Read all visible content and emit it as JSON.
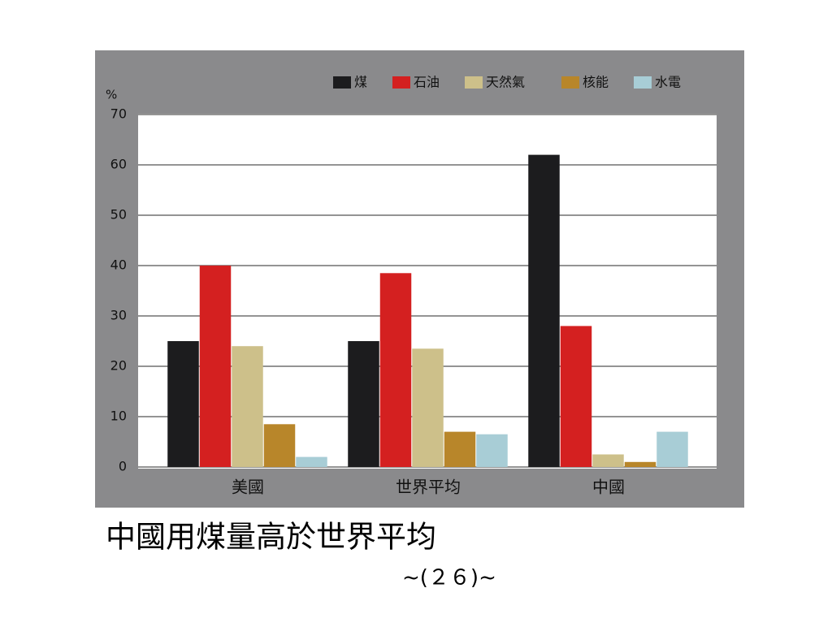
{
  "chart_data": {
    "type": "bar",
    "y_label": "%",
    "categories": [
      "美國",
      "世界平均",
      "中國"
    ],
    "series": [
      {
        "name": "煤",
        "color": "#1c1c1e",
        "values": [
          25,
          25,
          62
        ]
      },
      {
        "name": "石油",
        "color": "#d42020",
        "values": [
          40,
          38.5,
          28
        ]
      },
      {
        "name": "天然氣",
        "color": "#cdc08a",
        "values": [
          24,
          23.5,
          2.5
        ]
      },
      {
        "name": "核能",
        "color": "#b8862a",
        "values": [
          8.5,
          7,
          1
        ]
      },
      {
        "name": "水電",
        "color": "#a8cdd6",
        "values": [
          2,
          6.5,
          7
        ]
      }
    ],
    "ylim": [
      0,
      70
    ],
    "yticks": [
      0,
      10,
      20,
      30,
      40,
      50,
      60,
      70
    ],
    "grid": true
  },
  "caption": "中國用煤量高於世界平均",
  "page_number": "~(２６)~"
}
